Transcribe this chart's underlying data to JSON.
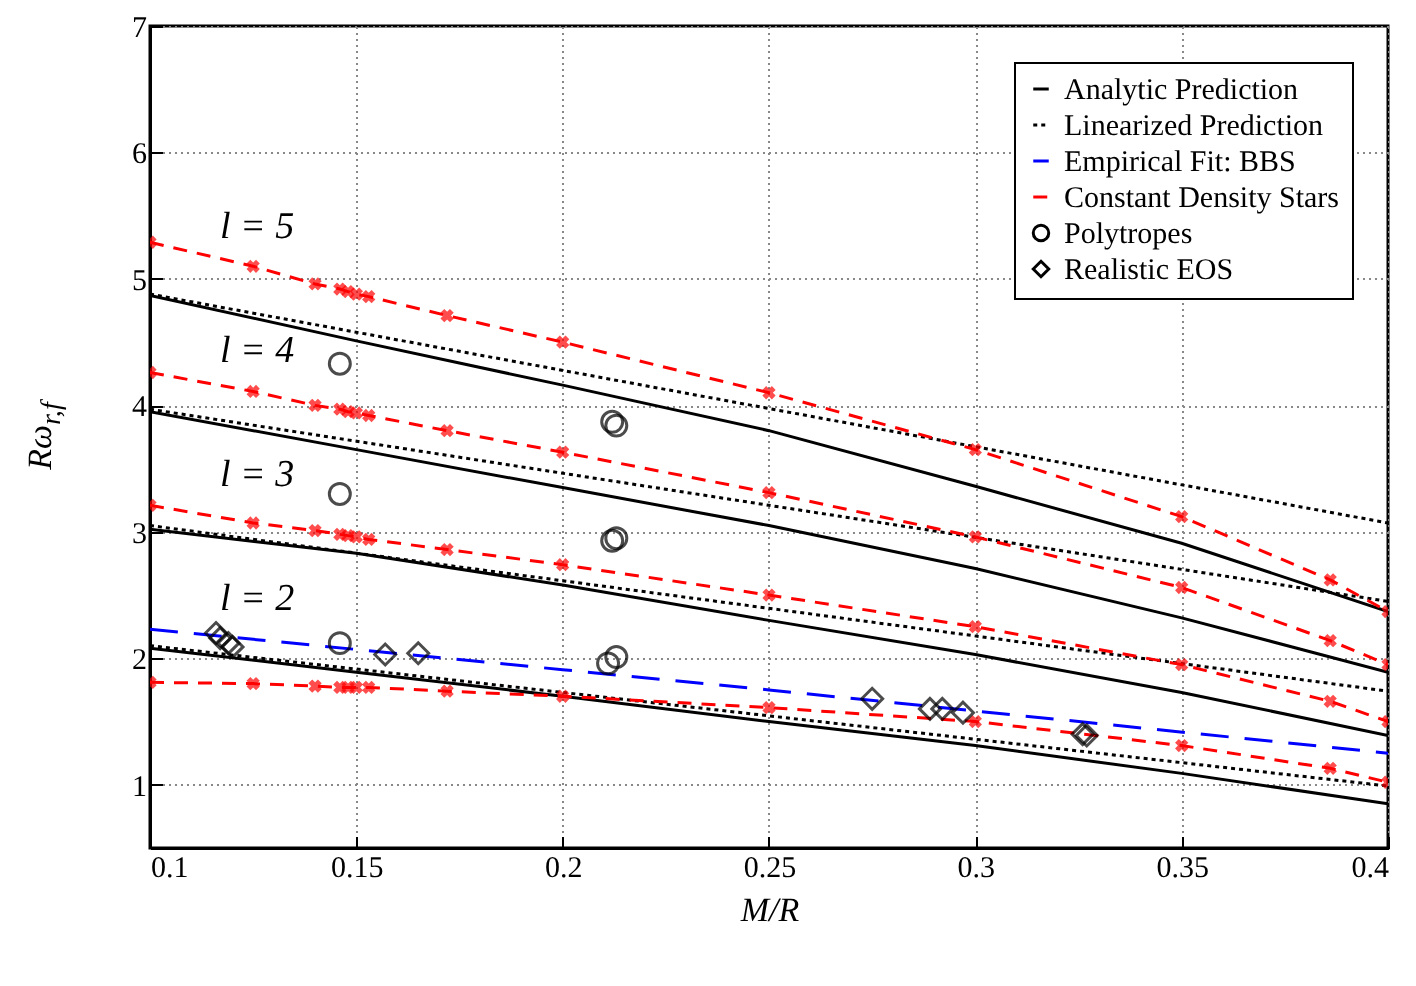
{
  "chart_data": {
    "type": "line",
    "xlabel": "M/R",
    "ylabel": "Rω$_{r,f}$",
    "xlim": [
      0.1,
      0.4
    ],
    "ylim": [
      0.5,
      7
    ],
    "xticks": [
      0.1,
      0.15,
      0.2,
      0.25,
      0.3,
      0.35,
      0.4
    ],
    "yticks": [
      1,
      2,
      3,
      4,
      5,
      6,
      7
    ],
    "grid": true,
    "legend": "top right",
    "annotations": [
      "l = 5",
      "l = 4",
      "l = 3",
      "l = 2"
    ],
    "series": [
      {
        "name": "Analytic Prediction",
        "color": "#000000",
        "line_style": "solid",
        "marker": "none",
        "x": [
          0.1,
          0.15,
          0.2,
          0.25,
          0.3,
          0.35,
          0.4
        ],
        "values": [
          4.87,
          4.51,
          4.16,
          3.8,
          3.36,
          2.91,
          2.37
        ]
      },
      {
        "color": "#000000",
        "line_style": "solid",
        "marker": "none",
        "x": [
          0.1,
          0.15,
          0.2,
          0.25,
          0.3,
          0.35,
          0.4
        ],
        "values": [
          3.95,
          3.65,
          3.35,
          3.05,
          2.71,
          2.32,
          1.89
        ]
      },
      {
        "color": "#000000",
        "line_style": "solid",
        "marker": "none",
        "x": [
          0.1,
          0.15,
          0.2,
          0.25,
          0.3,
          0.35,
          0.4
        ],
        "values": [
          3.02,
          2.83,
          2.58,
          2.3,
          2.03,
          1.73,
          1.39
        ]
      },
      {
        "color": "#000000",
        "line_style": "solid",
        "marker": "none",
        "x": [
          0.1,
          0.15,
          0.2,
          0.25,
          0.3,
          0.35,
          0.4
        ],
        "values": [
          2.08,
          1.89,
          1.7,
          1.5,
          1.31,
          1.09,
          0.85
        ]
      },
      {
        "name": "Linearized Prediction",
        "color": "#000000",
        "line_style": "dotted",
        "marker": "none",
        "x": [
          0.1,
          0.4
        ],
        "values": [
          4.88,
          3.07
        ]
      },
      {
        "color": "#000000",
        "line_style": "dotted",
        "marker": "none",
        "x": [
          0.1,
          0.4
        ],
        "values": [
          3.97,
          2.45
        ]
      },
      {
        "color": "#000000",
        "line_style": "dotted",
        "marker": "none",
        "x": [
          0.1,
          0.4
        ],
        "values": [
          3.05,
          1.74
        ]
      },
      {
        "color": "#000000",
        "line_style": "dotted",
        "marker": "none",
        "x": [
          0.1,
          0.4
        ],
        "values": [
          2.1,
          0.99
        ]
      },
      {
        "name": "Empirical Fit: BBS",
        "color": "#0000ff",
        "line_style": "dashed",
        "marker": "none",
        "x": [
          0.1,
          0.2,
          0.25,
          0.4
        ],
        "values": [
          2.23,
          1.91,
          1.75,
          1.25
        ]
      },
      {
        "name": "Constant Density Stars",
        "color": "#ff0000",
        "line_style": "dashed",
        "marker": "cross",
        "x": [
          0.1,
          0.125,
          0.14,
          0.146,
          0.148,
          0.15,
          0.153,
          0.172,
          0.2,
          0.25,
          0.3,
          0.35,
          0.386,
          0.4
        ],
        "values": [
          5.29,
          5.1,
          4.96,
          4.92,
          4.9,
          4.88,
          4.86,
          4.71,
          4.5,
          4.1,
          3.65,
          3.12,
          2.62,
          2.37
        ]
      },
      {
        "color": "#ff0000",
        "line_style": "dashed",
        "marker": "cross",
        "x": [
          0.1,
          0.125,
          0.14,
          0.146,
          0.148,
          0.15,
          0.153,
          0.172,
          0.2,
          0.25,
          0.3,
          0.35,
          0.386,
          0.4
        ],
        "values": [
          4.26,
          4.11,
          4.0,
          3.97,
          3.95,
          3.94,
          3.92,
          3.8,
          3.63,
          3.31,
          2.96,
          2.56,
          2.14,
          1.95
        ]
      },
      {
        "color": "#ff0000",
        "line_style": "dashed",
        "marker": "cross",
        "x": [
          0.1,
          0.125,
          0.14,
          0.146,
          0.148,
          0.15,
          0.153,
          0.172,
          0.2,
          0.25,
          0.3,
          0.35,
          0.386,
          0.4
        ],
        "values": [
          3.21,
          3.07,
          3.01,
          2.98,
          2.97,
          2.96,
          2.94,
          2.86,
          2.74,
          2.5,
          2.25,
          1.95,
          1.66,
          1.5
        ]
      },
      {
        "color": "#ff0000",
        "line_style": "dashed",
        "marker": "cross",
        "x": [
          0.1,
          0.125,
          0.14,
          0.146,
          0.148,
          0.15,
          0.153,
          0.172,
          0.2,
          0.25,
          0.3,
          0.35,
          0.386,
          0.4
        ],
        "values": [
          1.81,
          1.8,
          1.78,
          1.77,
          1.77,
          1.77,
          1.77,
          1.74,
          1.7,
          1.61,
          1.5,
          1.31,
          1.13,
          1.02
        ]
      },
      {
        "name": "Polytropes",
        "type": "scatter",
        "color": "#000000",
        "marker": "circle",
        "x": [
          0.146,
          0.146,
          0.146,
          0.212,
          0.213,
          0.212,
          0.213,
          0.211,
          0.213
        ],
        "values": [
          4.33,
          3.3,
          2.12,
          3.87,
          3.84,
          2.93,
          2.95,
          1.96,
          2.01
        ]
      },
      {
        "name": "Realistic EOS",
        "type": "scatter",
        "color": "#000000",
        "marker": "diamond",
        "x": [
          0.116,
          0.117,
          0.119,
          0.12,
          0.157,
          0.165,
          0.275,
          0.289,
          0.292,
          0.297,
          0.326,
          0.327
        ],
        "values": [
          2.2,
          2.16,
          2.12,
          2.09,
          2.03,
          2.04,
          1.68,
          1.6,
          1.6,
          1.57,
          1.4,
          1.39
        ]
      }
    ]
  }
}
